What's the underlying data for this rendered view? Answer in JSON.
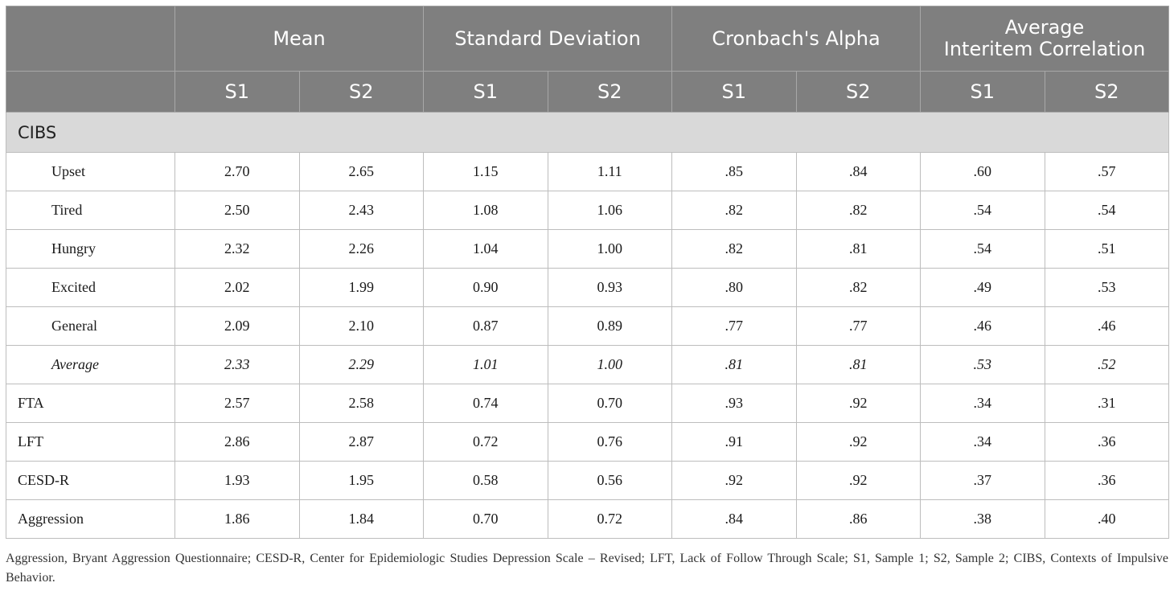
{
  "header": {
    "groups": [
      "Mean",
      "Standard Deviation",
      "Cronbach's Alpha",
      "Average Interitem Correlation"
    ],
    "subcols": [
      "S1",
      "S2",
      "S1",
      "S2",
      "S1",
      "S2",
      "S1",
      "S2"
    ]
  },
  "section_label": "CIBS",
  "rows": [
    {
      "label": "Upset",
      "values": [
        "2.70",
        "2.65",
        "1.15",
        "1.11",
        ".85",
        ".84",
        ".60",
        ".57"
      ]
    },
    {
      "label": "Tired",
      "values": [
        "2.50",
        "2.43",
        "1.08",
        "1.06",
        ".82",
        ".82",
        ".54",
        ".54"
      ]
    },
    {
      "label": "Hungry",
      "values": [
        "2.32",
        "2.26",
        "1.04",
        "1.00",
        ".82",
        ".81",
        ".54",
        ".51"
      ]
    },
    {
      "label": "Excited",
      "values": [
        "2.02",
        "1.99",
        "0.90",
        "0.93",
        ".80",
        ".82",
        ".49",
        ".53"
      ]
    },
    {
      "label": "General",
      "values": [
        "2.09",
        "2.10",
        "0.87",
        "0.89",
        ".77",
        ".77",
        ".46",
        ".46"
      ]
    },
    {
      "label": "Average",
      "values": [
        "2.33",
        "2.29",
        "1.01",
        "1.00",
        ".81",
        ".81",
        ".53",
        ".52"
      ]
    },
    {
      "label": "FTA",
      "values": [
        "2.57",
        "2.58",
        "0.74",
        "0.70",
        ".93",
        ".92",
        ".34",
        ".31"
      ]
    },
    {
      "label": "LFT",
      "values": [
        "2.86",
        "2.87",
        "0.72",
        "0.76",
        ".91",
        ".92",
        ".34",
        ".36"
      ]
    },
    {
      "label": "CESD-R",
      "values": [
        "1.93",
        "1.95",
        "0.58",
        "0.56",
        ".92",
        ".92",
        ".37",
        ".36"
      ]
    },
    {
      "label": "Aggression",
      "values": [
        "1.86",
        "1.84",
        "0.70",
        "0.72",
        ".84",
        ".86",
        ".38",
        ".40"
      ]
    }
  ],
  "footnote": "Aggression, Bryant Aggression Questionnaire; CESD-R, Center for Epidemiologic Studies Depression Scale – Revised; LFT, Lack of Follow Through Scale; S1, Sample 1; S2, Sample 2; CIBS, Contexts of Impulsive Behavior."
}
